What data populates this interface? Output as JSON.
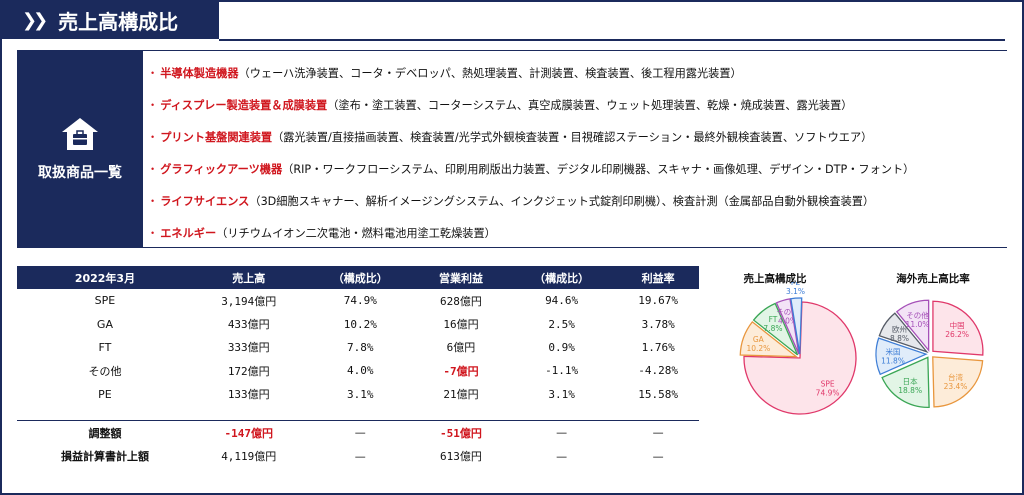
{
  "title": "売上高構成比",
  "products": {
    "label": "取扱商品一覧",
    "items": [
      {
        "category": "半導体製造機器",
        "detail": "（ウェーハ洗浄装置、コータ・デベロッパ、熱処理装置、計測装置、検査装置、後工程用露光装置）"
      },
      {
        "category": "ディスプレー製造装置＆成膜装置",
        "detail": "（塗布・塗工装置、コーターシステム、真空成膜装置、ウェット処理装置、乾燥・焼成装置、露光装置）"
      },
      {
        "category": "プリント基盤関連装置",
        "detail": "（露光装置/直接描画装置、検査装置/光学式外観検査装置・目視確認ステーション・最終外観検査装置、ソフトウエア）"
      },
      {
        "category": "グラフィックアーツ機器",
        "detail": "（RIP・ワークフローシステム、印刷用刷版出力装置、デジタル印刷機器、スキャナ・画像処理、デザイン・DTP・フォント）"
      },
      {
        "category": "ライフサイエンス",
        "detail": "（3D細胞スキャナー、解析イメージングシステム、インクジェット式錠剤印刷機）、検査計測（金属部品自動外観検査装置）"
      },
      {
        "category": "エネルギー",
        "detail": "（リチウムイオン二次電池・燃料電池用塗工乾燥装置）"
      }
    ]
  },
  "table": {
    "headers": [
      "2022年3月",
      "売上高",
      "（構成比）",
      "営業利益",
      "（構成比）",
      "利益率"
    ],
    "rows": [
      {
        "seg": "SPE",
        "sales": "3,194億円",
        "ratio": "74.9%",
        "op": "628億円",
        "op_ratio": "94.6%",
        "margin": "19.67%"
      },
      {
        "seg": "GA",
        "sales": "433億円",
        "ratio": "10.2%",
        "op": "16億円",
        "op_ratio": "2.5%",
        "margin": "3.78%"
      },
      {
        "seg": "FT",
        "sales": "333億円",
        "ratio": "7.8%",
        "op": "6億円",
        "op_ratio": "0.9%",
        "margin": "1.76%"
      },
      {
        "seg": "その他",
        "sales": "172億円",
        "ratio": "4.0%",
        "op": "-7億円",
        "op_ratio": "-1.1%",
        "margin": "-4.28%"
      },
      {
        "seg": "PE",
        "sales": "133億円",
        "ratio": "3.1%",
        "op": "21億円",
        "op_ratio": "3.1%",
        "margin": "15.58%"
      }
    ],
    "adjust": {
      "seg": "調整額",
      "sales": "-147億円",
      "ratio": "—",
      "op": "-51億円",
      "op_ratio": "—",
      "margin": "—"
    },
    "total": {
      "seg": "損益計算書計上額",
      "sales": "4,119億円",
      "ratio": "—",
      "op": "613億円",
      "op_ratio": "—",
      "margin": "—"
    }
  },
  "chart_data": [
    {
      "type": "pie",
      "title": "売上高構成比",
      "slices": [
        {
          "label": "SPE",
          "value": 74.9,
          "value_label": "74.9%",
          "fill": "#fde4ea",
          "stroke": "#e0386a"
        },
        {
          "label": "GA",
          "value": 10.2,
          "value_label": "10.2%",
          "fill": "#fdecd9",
          "stroke": "#e8963d"
        },
        {
          "label": "FT",
          "value": 7.8,
          "value_label": "7.8%",
          "fill": "#e2f5e6",
          "stroke": "#3aa655"
        },
        {
          "label": "その他",
          "value": 4.0,
          "value_label": "4.0%",
          "fill": "#f3e3f6",
          "stroke": "#a550b8"
        },
        {
          "label": "PE",
          "value": 3.1,
          "value_label": "3.1%",
          "fill": "#e0ecfa",
          "stroke": "#3d7dd6"
        }
      ]
    },
    {
      "type": "pie",
      "title": "海外売上高比率",
      "slices": [
        {
          "label": "中国",
          "value": 26.2,
          "value_label": "26.2%",
          "fill": "#fde4ea",
          "stroke": "#e0386a"
        },
        {
          "label": "台湾",
          "value": 23.4,
          "value_label": "23.4%",
          "fill": "#fdecd9",
          "stroke": "#e8963d"
        },
        {
          "label": "日本",
          "value": 18.8,
          "value_label": "18.8%",
          "fill": "#e2f5e6",
          "stroke": "#3aa655"
        },
        {
          "label": "米国",
          "value": 11.8,
          "value_label": "11.8%",
          "fill": "#e0ecfa",
          "stroke": "#3d7dd6"
        },
        {
          "label": "欧州",
          "value": 8.8,
          "value_label": "8.8%",
          "fill": "#e6e8ec",
          "stroke": "#555b66"
        },
        {
          "label": "その他",
          "value": 11.0,
          "value_label": "11.0%",
          "fill": "#f3e3f6",
          "stroke": "#a550b8"
        }
      ]
    }
  ]
}
